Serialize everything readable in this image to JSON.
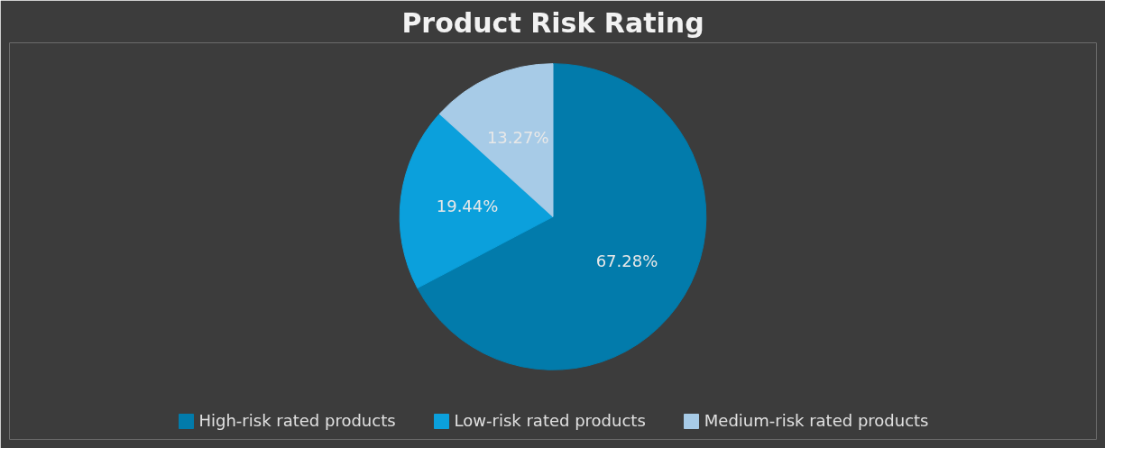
{
  "chart_data": {
    "type": "pie",
    "title": "Product Risk Rating",
    "categories": [
      "High-risk rated products",
      "Low-risk rated products",
      "Medium-risk rated products"
    ],
    "values": [
      67.28,
      19.44,
      13.27
    ],
    "colors": [
      "#027bab",
      "#0ba0dc",
      "#a7cbe7"
    ],
    "value_labels": [
      "67.28%",
      "19.44%",
      "13.27%"
    ],
    "legend": "bottom"
  }
}
